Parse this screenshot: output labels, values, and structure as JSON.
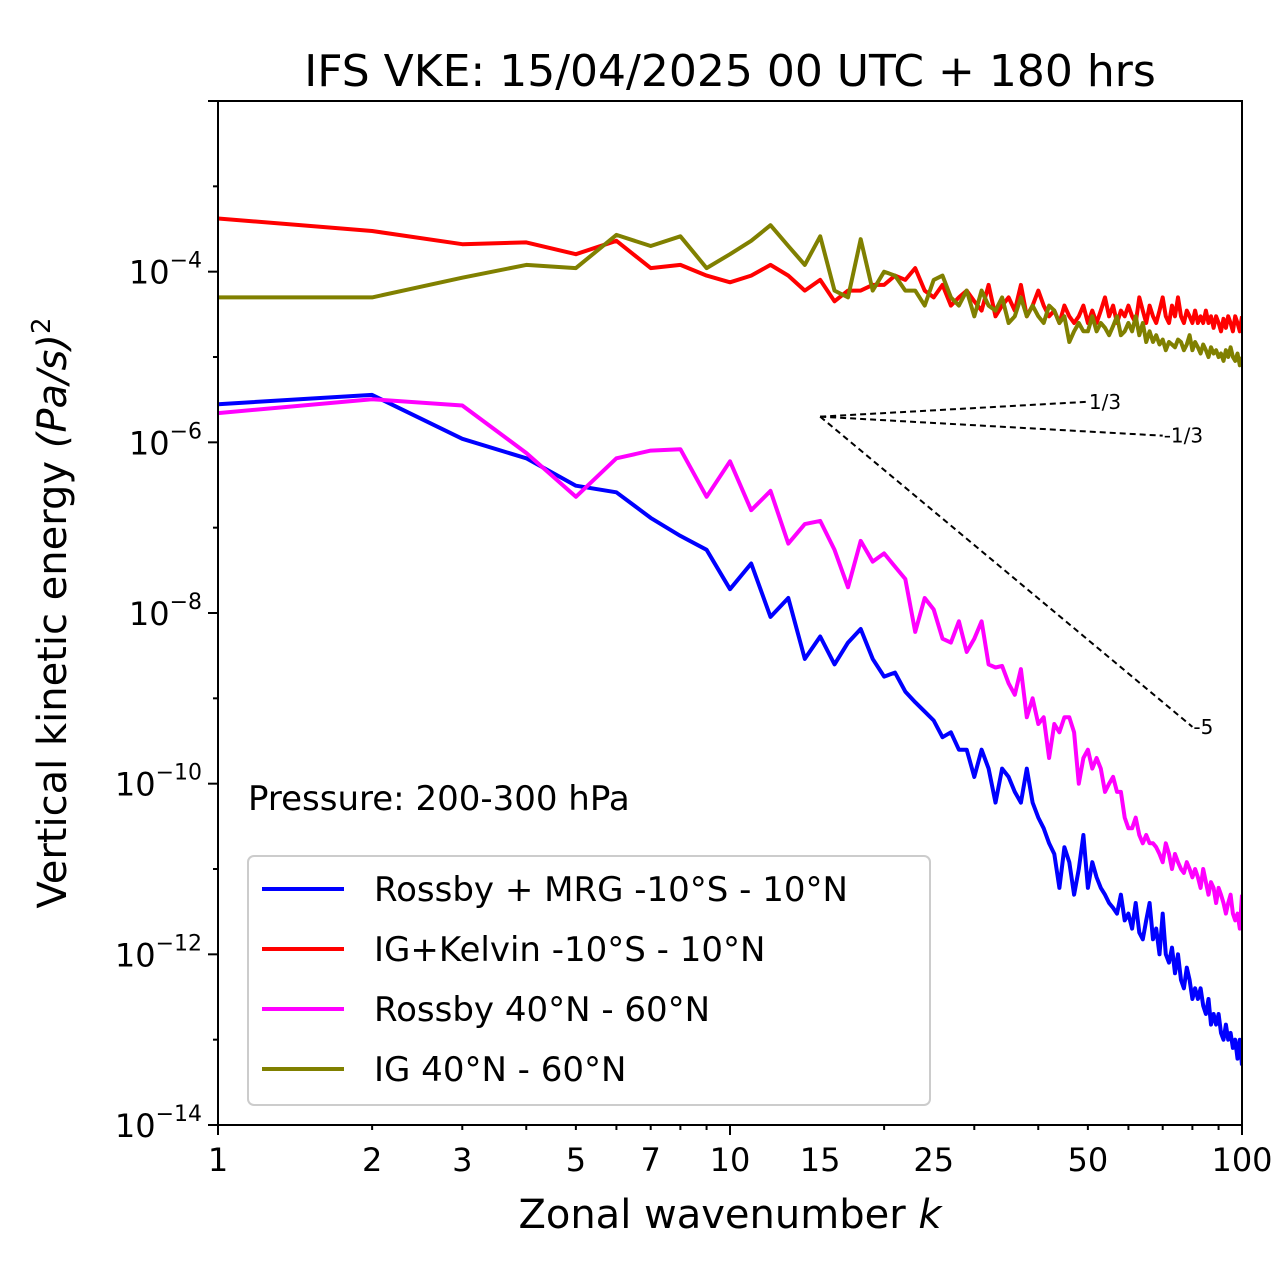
{
  "chart_data": {
    "type": "line",
    "title": "IFS VKE: 15/04/2025 00 UTC + 180 hrs",
    "xlabel": "Zonal wavenumber",
    "xlabel_italic": "k",
    "ylabel": "Vertical kinetic energy",
    "ylabel_unit": "(Pa/s)",
    "ylabel_unit_power": "2",
    "xscale": "log",
    "yscale": "log",
    "xlim": [
      1,
      100
    ],
    "ylim": [
      1e-14,
      0.01
    ],
    "x_ticks": [
      {
        "value": 1,
        "label": "1"
      },
      {
        "value": 2,
        "label": "2"
      },
      {
        "value": 3,
        "label": "3"
      },
      {
        "value": 5,
        "label": "5"
      },
      {
        "value": 7,
        "label": "7"
      },
      {
        "value": 10,
        "label": "10"
      },
      {
        "value": 15,
        "label": "15"
      },
      {
        "value": 25,
        "label": "25"
      },
      {
        "value": 50,
        "label": "50"
      },
      {
        "value": 100,
        "label": "100"
      }
    ],
    "y_ticks": [
      {
        "value": 0.0001,
        "base": "10",
        "exp": "−4"
      },
      {
        "value": 1e-06,
        "base": "10",
        "exp": "−6"
      },
      {
        "value": 1e-08,
        "base": "10",
        "exp": "−8"
      },
      {
        "value": 1e-10,
        "base": "10",
        "exp": "−10"
      },
      {
        "value": 1e-12,
        "base": "10",
        "exp": "−12"
      },
      {
        "value": 1e-14,
        "base": "10",
        "exp": "−14"
      }
    ],
    "annotation": "Pressure: 200-300 hPa",
    "legend_position": "lower-left",
    "grid": false,
    "reference_slopes": [
      {
        "label": "1/3",
        "slope": 0.3333,
        "x0": 15,
        "y0": 2e-06,
        "x1": 50
      },
      {
        "label": "-1/3",
        "slope": -0.3333,
        "x0": 15,
        "y0": 2e-06,
        "x1": 70
      },
      {
        "label": "-5",
        "slope": -5,
        "x0": 15,
        "y0": 2e-06,
        "x1": 80
      }
    ],
    "series": [
      {
        "name": "Rossby + MRG -10°S - 10°N",
        "color": "#0000ff",
        "x": [
          1,
          2,
          3,
          4,
          5,
          6,
          7,
          8,
          9,
          10,
          11,
          12,
          13,
          14,
          15,
          16,
          17,
          18,
          19,
          20,
          21,
          22,
          23,
          24,
          25,
          26,
          27,
          28,
          29,
          30,
          31,
          32,
          33,
          34,
          35,
          36,
          37,
          38,
          39,
          40,
          41,
          42,
          43,
          44,
          45,
          46,
          47,
          48,
          49,
          50,
          51,
          52,
          53,
          54,
          55,
          56,
          57,
          58,
          59,
          60,
          61,
          62,
          63,
          64,
          65,
          66,
          67,
          68,
          69,
          70,
          71,
          72,
          73,
          74,
          75,
          76,
          77,
          78,
          79,
          80,
          81,
          82,
          83,
          84,
          85,
          86,
          87,
          88,
          89,
          90,
          91,
          92,
          93,
          94,
          95,
          96,
          97,
          98,
          99,
          100
        ],
        "y": [
          2.8e-06,
          3.6e-06,
          1.1e-06,
          6.5e-07,
          3.1e-07,
          2.6e-07,
          1.3e-07,
          8e-08,
          5.5e-08,
          1.9e-08,
          3.8e-08,
          9e-09,
          1.5e-08,
          2.9e-09,
          5.3e-09,
          2.5e-09,
          4.5e-09,
          6.5e-09,
          2.9e-09,
          1.8e-09,
          2e-09,
          1.2e-09,
          9e-10,
          7e-10,
          5.5e-10,
          3.5e-10,
          4e-10,
          2.5e-10,
          2.5e-10,
          1.2e-10,
          2.5e-10,
          1.5e-10,
          6e-11,
          1.5e-10,
          1.2e-10,
          8e-11,
          6e-11,
          1.5e-10,
          6e-11,
          4e-11,
          3e-11,
          2e-11,
          1.5e-11,
          6e-12,
          1.8e-11,
          1.2e-11,
          5e-12,
          1e-11,
          2.5e-11,
          6e-12,
          1.2e-11,
          8e-12,
          6e-12,
          5e-12,
          4e-12,
          3.5e-12,
          3e-12,
          5e-12,
          2.5e-12,
          3e-12,
          2e-12,
          4e-12,
          1.8e-12,
          1.5e-12,
          2.5e-12,
          4e-12,
          1.5e-12,
          2e-12,
          1e-12,
          3e-12,
          1e-12,
          8e-13,
          1.2e-12,
          6e-13,
          1e-12,
          5e-13,
          4e-13,
          7e-13,
          5e-13,
          3e-13,
          4e-13,
          3e-13,
          4e-13,
          2.5e-13,
          2e-13,
          3e-13,
          1.5e-13,
          2e-13,
          1.5e-13,
          2e-13,
          1.2e-13,
          1e-13,
          1.5e-13,
          1e-13,
          1.2e-13,
          8e-14,
          1e-13,
          6e-14,
          1e-13,
          5e-14
        ]
      },
      {
        "name": "IG+Kelvin -10°S - 10°N",
        "color": "#ff0000",
        "x": [
          1,
          2,
          3,
          4,
          5,
          6,
          7,
          8,
          9,
          10,
          11,
          12,
          13,
          14,
          15,
          16,
          17,
          18,
          19,
          20,
          21,
          22,
          23,
          24,
          25,
          26,
          27,
          28,
          29,
          30,
          31,
          32,
          33,
          34,
          35,
          36,
          37,
          38,
          39,
          40,
          41,
          42,
          43,
          44,
          45,
          46,
          47,
          48,
          49,
          50,
          51,
          52,
          53,
          54,
          55,
          56,
          57,
          58,
          59,
          60,
          61,
          62,
          63,
          64,
          65,
          66,
          67,
          68,
          69,
          70,
          71,
          72,
          73,
          74,
          75,
          76,
          77,
          78,
          79,
          80,
          81,
          82,
          83,
          84,
          85,
          86,
          87,
          88,
          89,
          90,
          91,
          92,
          93,
          94,
          95,
          96,
          97,
          98,
          99,
          100
        ],
        "y": [
          0.00042,
          0.0003,
          0.00021,
          0.00022,
          0.00016,
          0.00023,
          0.00011,
          0.00012,
          9e-05,
          7.5e-05,
          9e-05,
          0.00012,
          9e-05,
          6e-05,
          8e-05,
          4.5e-05,
          6e-05,
          6e-05,
          7e-05,
          7e-05,
          9e-05,
          8e-05,
          0.00011,
          6e-05,
          5e-05,
          7e-05,
          4e-05,
          5e-05,
          6e-05,
          4.5e-05,
          3.5e-05,
          7e-05,
          3e-05,
          4e-05,
          5e-05,
          3.5e-05,
          7e-05,
          3e-05,
          4e-05,
          6e-05,
          4e-05,
          3e-05,
          3.5e-05,
          2.5e-05,
          4e-05,
          3e-05,
          2.5e-05,
          3e-05,
          4e-05,
          2.5e-05,
          3.5e-05,
          2.5e-05,
          3.5e-05,
          5e-05,
          3e-05,
          4e-05,
          2.5e-05,
          3.5e-05,
          3e-05,
          4e-05,
          3e-05,
          2.5e-05,
          5e-05,
          3.5e-05,
          2.5e-05,
          4e-05,
          3e-05,
          2.5e-05,
          3.5e-05,
          5e-05,
          3e-05,
          2.5e-05,
          4e-05,
          3e-05,
          5e-05,
          3e-05,
          2.5e-05,
          3.5e-05,
          3e-05,
          2.5e-05,
          3.5e-05,
          2.5e-05,
          3e-05,
          2.5e-05,
          3.5e-05,
          2.5e-05,
          3e-05,
          2.2e-05,
          3e-05,
          2.5e-05,
          2e-05,
          2.8e-05,
          2.2e-05,
          3e-05,
          2.5e-05,
          2e-05,
          3e-05,
          2.5e-05,
          2e-05,
          3e-05
        ]
      },
      {
        "name": "Rossby 40°N - 60°N",
        "color": "#ff00ff",
        "x": [
          1,
          2,
          3,
          4,
          5,
          6,
          7,
          8,
          9,
          10,
          11,
          12,
          13,
          14,
          15,
          16,
          17,
          18,
          19,
          20,
          21,
          22,
          23,
          24,
          25,
          26,
          27,
          28,
          29,
          30,
          31,
          32,
          33,
          34,
          35,
          36,
          37,
          38,
          39,
          40,
          41,
          42,
          43,
          44,
          45,
          46,
          47,
          48,
          49,
          50,
          51,
          52,
          53,
          54,
          55,
          56,
          57,
          58,
          59,
          60,
          61,
          62,
          63,
          64,
          65,
          66,
          67,
          68,
          69,
          70,
          71,
          72,
          73,
          74,
          75,
          76,
          77,
          78,
          79,
          80,
          81,
          82,
          83,
          84,
          85,
          86,
          87,
          88,
          89,
          90,
          91,
          92,
          93,
          94,
          95,
          96,
          97,
          98,
          99,
          100
        ],
        "y": [
          2.2e-06,
          3.2e-06,
          2.7e-06,
          7.5e-07,
          2.3e-07,
          6.5e-07,
          8e-07,
          8.3e-07,
          2.3e-07,
          6e-07,
          1.6e-07,
          2.7e-07,
          6.5e-08,
          1.1e-07,
          1.2e-07,
          5.5e-08,
          2e-08,
          7e-08,
          4e-08,
          5e-08,
          3.5e-08,
          2.5e-08,
          6e-09,
          1.5e-08,
          1.1e-08,
          5e-09,
          4.5e-09,
          8e-09,
          3.5e-09,
          5e-09,
          8e-09,
          2.5e-09,
          2.3e-09,
          2.4e-09,
          1.5e-09,
          1.1e-09,
          2.2e-09,
          6e-10,
          1e-09,
          5e-10,
          6e-10,
          2e-10,
          5e-10,
          4e-10,
          6e-10,
          6e-10,
          4e-10,
          1e-10,
          2e-10,
          2.5e-10,
          1.5e-10,
          2e-10,
          1.5e-10,
          8e-11,
          1e-10,
          1.2e-10,
          8e-11,
          8e-11,
          4e-11,
          3e-11,
          3e-11,
          4e-11,
          2.5e-11,
          2e-11,
          2.5e-11,
          2e-11,
          2e-11,
          1.8e-11,
          1.5e-11,
          1.2e-11,
          2e-11,
          1.5e-11,
          1e-11,
          1.5e-11,
          1.2e-11,
          1e-11,
          9e-12,
          1.2e-11,
          1e-11,
          8e-12,
          1e-11,
          8e-12,
          6e-12,
          1e-11,
          7e-12,
          5e-12,
          7e-12,
          6e-12,
          4e-12,
          6e-12,
          5e-12,
          4e-12,
          3e-12,
          4e-12,
          5e-12,
          3e-12,
          2.5e-12,
          3e-12,
          2e-12,
          5e-12
        ]
      },
      {
        "name": "IG 40°N - 60°N",
        "color": "#808000",
        "x": [
          1,
          2,
          3,
          4,
          5,
          6,
          7,
          8,
          9,
          10,
          11,
          12,
          13,
          14,
          15,
          16,
          17,
          18,
          19,
          20,
          21,
          22,
          23,
          24,
          25,
          26,
          27,
          28,
          29,
          30,
          31,
          32,
          33,
          34,
          35,
          36,
          37,
          38,
          39,
          40,
          41,
          42,
          43,
          44,
          45,
          46,
          47,
          48,
          49,
          50,
          51,
          52,
          53,
          54,
          55,
          56,
          57,
          58,
          59,
          60,
          61,
          62,
          63,
          64,
          65,
          66,
          67,
          68,
          69,
          70,
          71,
          72,
          73,
          74,
          75,
          76,
          77,
          78,
          79,
          80,
          81,
          82,
          83,
          84,
          85,
          86,
          87,
          88,
          89,
          90,
          91,
          92,
          93,
          94,
          95,
          96,
          97,
          98,
          99,
          100
        ],
        "y": [
          5e-05,
          5e-05,
          8.5e-05,
          0.00012,
          0.00011,
          0.00027,
          0.0002,
          0.00026,
          0.00011,
          0.00016,
          0.00023,
          0.00035,
          0.0002,
          0.00012,
          0.00026,
          6e-05,
          5e-05,
          0.00024,
          6e-05,
          0.0001,
          9e-05,
          6e-05,
          6e-05,
          4e-05,
          8e-05,
          9e-05,
          5e-05,
          4e-05,
          6e-05,
          3e-05,
          6e-05,
          4e-05,
          3.5e-05,
          5e-05,
          2.5e-05,
          3e-05,
          5e-05,
          3e-05,
          4e-05,
          3e-05,
          2.5e-05,
          4e-05,
          3.5e-05,
          2.5e-05,
          3e-05,
          1.5e-05,
          2e-05,
          2.5e-05,
          2e-05,
          2e-05,
          3e-05,
          2e-05,
          2.5e-05,
          2.2e-05,
          1.8e-05,
          2.3e-05,
          3e-05,
          1.8e-05,
          2e-05,
          2.5e-05,
          2e-05,
          3e-05,
          1.8e-05,
          2.5e-05,
          1.5e-05,
          2e-05,
          1.5e-05,
          1.8e-05,
          1.4e-05,
          1.6e-05,
          1.2e-05,
          1.5e-05,
          1.4e-05,
          1.3e-05,
          1.6e-05,
          1.5e-05,
          1.2e-05,
          1.4e-05,
          1.8e-05,
          1.2e-05,
          1.5e-05,
          1.3e-05,
          1.1e-05,
          1.4e-05,
          1.2e-05,
          1e-05,
          1.3e-05,
          1.1e-05,
          1.2e-05,
          1e-05,
          1.1e-05,
          9e-06,
          1.2e-05,
          1e-05,
          1.3e-05,
          1e-05,
          9e-06,
          1.1e-05,
          8e-06,
          1e-05
        ]
      }
    ]
  }
}
